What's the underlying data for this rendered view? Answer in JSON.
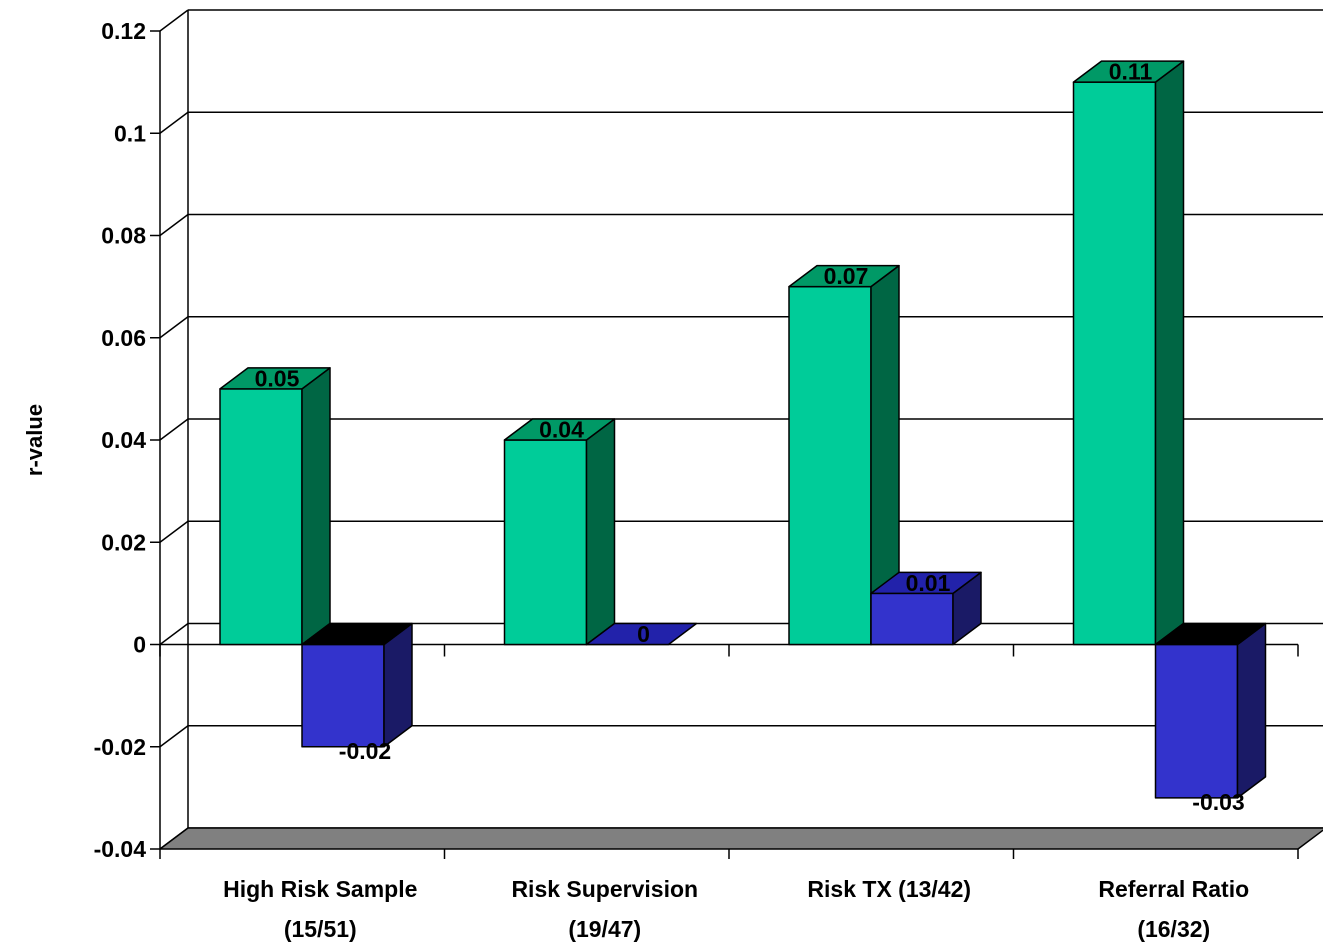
{
  "chart_data": {
    "type": "bar",
    "three_d": true,
    "title": "",
    "xlabel": "",
    "ylabel": "r-value",
    "ylim": [
      -0.04,
      0.12
    ],
    "yticks": [
      "0.12",
      "0.1",
      "0.08",
      "0.06",
      "0.04",
      "0.02",
      "0",
      "-0.02",
      "-0.04"
    ],
    "ytick_values": [
      0.12,
      0.1,
      0.08,
      0.06,
      0.04,
      0.02,
      0,
      -0.02,
      -0.04
    ],
    "grid": true,
    "legend": "none",
    "categories": [
      [
        "High Risk Sample",
        "(15/51)"
      ],
      [
        "Risk Supervision",
        "(19/47)"
      ],
      [
        "Risk TX (13/42)"
      ],
      [
        "Referral Ratio",
        "(16/32)"
      ]
    ],
    "series": [
      {
        "values": [
          0.05,
          0.04,
          0.07,
          0.11
        ],
        "labels": [
          "0.05",
          "0.04",
          "0.07",
          "0.11"
        ],
        "color_front": "#00cc99",
        "color_top": "#009966",
        "color_side": "#006644"
      },
      {
        "values": [
          -0.02,
          0,
          0.01,
          -0.03
        ],
        "labels": [
          "-0.02",
          "0",
          "0.01",
          "-0.03"
        ],
        "color_front": "#3333cc",
        "color_top": "#2222aa",
        "color_side": "#1a1a66"
      }
    ],
    "colors": {
      "floor": "#808080",
      "grid": "#000000",
      "background": "#ffffff"
    }
  }
}
